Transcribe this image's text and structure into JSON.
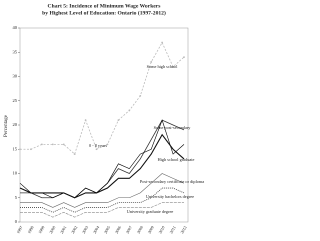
{
  "chart_data": {
    "type": "line",
    "title": [
      "Chart 5: Incidence of Minimum Wage Workers",
      "by Highest Level of Education: Ontario (1997-2012)"
    ],
    "y_label": "Percentage",
    "categories": [
      "1997",
      "1998",
      "1999",
      "2000",
      "2001",
      "2002",
      "2003",
      "2004",
      "2005",
      "2006",
      "2007",
      "2008",
      "2009",
      "2010",
      "2011",
      "2012"
    ],
    "ylim": [
      0,
      40
    ],
    "yticks": [
      0,
      5,
      10,
      15,
      20,
      25,
      30,
      35,
      40
    ],
    "series": [
      {
        "name": "Some high school",
        "color": "#bbbbbb",
        "values": [
          15,
          15,
          16,
          16,
          16,
          14,
          21,
          15,
          16,
          21,
          23,
          26,
          33,
          37,
          32,
          34
        ]
      },
      {
        "name": "Some post-secondary",
        "color": "#333333",
        "values": [
          6,
          6,
          5,
          5,
          6,
          5,
          7,
          6,
          8,
          11,
          10,
          13,
          17,
          21,
          20,
          19
        ]
      },
      {
        "name": "0 - 8 years",
        "color": "#000000",
        "values": [
          8,
          6,
          6,
          5,
          6,
          5,
          7,
          6,
          8,
          12,
          11,
          14,
          15,
          21,
          14,
          16
        ]
      },
      {
        "name": "High school graduate",
        "color": "#111111",
        "values": [
          7,
          6,
          6,
          6,
          6,
          5,
          6,
          6,
          7,
          9,
          9,
          11,
          14,
          18,
          15,
          13
        ]
      },
      {
        "name": "Post-secondary certificate or diploma",
        "color": "#666666",
        "values": [
          4,
          4,
          4,
          3,
          4,
          3,
          4,
          4,
          4,
          5,
          5,
          6,
          8,
          10,
          9,
          8
        ]
      },
      {
        "name": "University bachelors degree",
        "color": "#444444",
        "values": [
          3,
          3,
          3,
          2,
          3,
          2,
          3,
          3,
          3,
          4,
          4,
          4,
          5,
          7,
          7,
          6
        ]
      },
      {
        "name": "University graduate degree",
        "color": "#888888",
        "values": [
          2,
          2,
          2,
          1,
          2,
          1,
          2,
          2,
          2,
          3,
          3,
          3,
          3,
          4,
          4,
          4
        ]
      }
    ]
  }
}
